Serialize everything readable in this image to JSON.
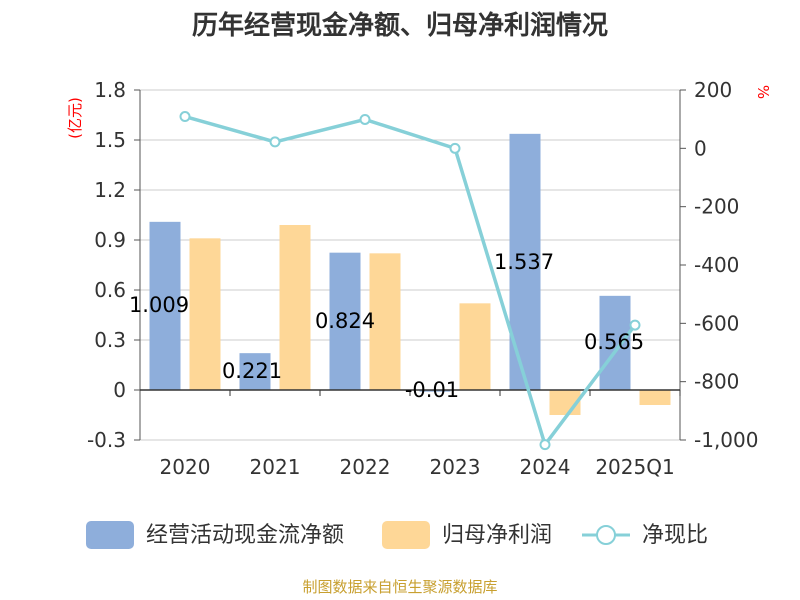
{
  "chart_data": {
    "type": "bar",
    "title": "历年经营现金净额、归母净利润情况",
    "categories": [
      "2020",
      "2021",
      "2022",
      "2023",
      "2024",
      "2025Q1"
    ],
    "left_axis": {
      "unit": "(亿元)",
      "ylim": [
        -0.3,
        1.8
      ],
      "ticks": [
        "-0.3",
        "0",
        "0.3",
        "0.6",
        "0.9",
        "1.2",
        "1.5",
        "1.8"
      ]
    },
    "right_axis": {
      "unit": "%",
      "ylim": [
        -1000,
        200
      ],
      "ticks": [
        "-1,000",
        "-800",
        "-600",
        "-400",
        "-200",
        "0",
        "200"
      ]
    },
    "series": [
      {
        "name": "经营活动现金流净额",
        "kind": "bar",
        "axis": "left",
        "color": "#8eaedb",
        "values": [
          1.009,
          0.221,
          0.824,
          -0.01,
          1.537,
          0.565
        ],
        "labels": [
          "1.009",
          "0.221",
          "0.824",
          "-0.01",
          "1.537",
          "0.565"
        ]
      },
      {
        "name": "归母净利润",
        "kind": "bar",
        "axis": "left",
        "color": "#fed797",
        "values": [
          0.91,
          0.99,
          0.82,
          0.52,
          -0.15,
          -0.09
        ]
      },
      {
        "name": "净现比",
        "kind": "line",
        "axis": "right",
        "color": "#86d0d8",
        "values": [
          109,
          22,
          99,
          0,
          -1016,
          -606
        ]
      }
    ],
    "grid": true,
    "legend_position": "bottom"
  },
  "source": "制图数据来自恒生聚源数据库"
}
